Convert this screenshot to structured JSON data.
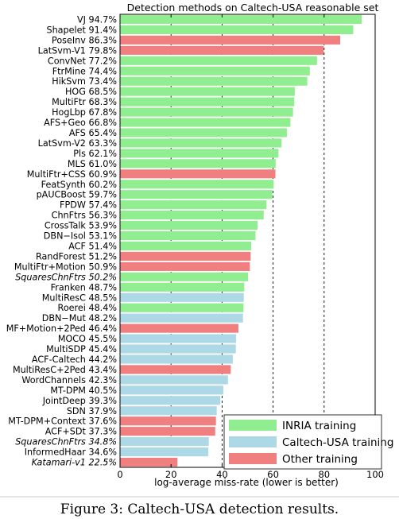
{
  "chart_data": {
    "type": "bar",
    "orientation": "horizontal",
    "title": "Detection methods on Caltech-USA reasonable set",
    "xlabel": "log-average miss-rate (lower is better)",
    "ylabel": "",
    "xlim": [
      0,
      100
    ],
    "xticks": [
      "0",
      "20",
      "40",
      "60",
      "80",
      "100"
    ],
    "grid": "vertical dashed at 20, 40, 60, 80",
    "legend_position": "bottom-right",
    "colors": {
      "inria": "#90ee90",
      "caltech": "#add8e6",
      "other": "#f08080"
    },
    "legend": [
      {
        "key": "inria",
        "label": "INRIA training"
      },
      {
        "key": "caltech",
        "label": "Caltech-USA training"
      },
      {
        "key": "other",
        "label": "Other training"
      }
    ],
    "bars": [
      {
        "label": "VJ 94.7%",
        "value": 94.7,
        "group": "inria",
        "italic": false
      },
      {
        "label": "Shapelet 91.4%",
        "value": 91.4,
        "group": "inria",
        "italic": false
      },
      {
        "label": "PoseInv 86.3%",
        "value": 86.3,
        "group": "other",
        "italic": false
      },
      {
        "label": "LatSvm-V1 79.8%",
        "value": 79.8,
        "group": "other",
        "italic": false
      },
      {
        "label": "ConvNet 77.2%",
        "value": 77.2,
        "group": "inria",
        "italic": false
      },
      {
        "label": "FtrMine 74.4%",
        "value": 74.4,
        "group": "inria",
        "italic": false
      },
      {
        "label": "HikSvm 73.4%",
        "value": 73.4,
        "group": "inria",
        "italic": false
      },
      {
        "label": "HOG 68.5%",
        "value": 68.5,
        "group": "inria",
        "italic": false
      },
      {
        "label": "MultiFtr 68.3%",
        "value": 68.3,
        "group": "inria",
        "italic": false
      },
      {
        "label": "HogLbp 67.8%",
        "value": 67.8,
        "group": "inria",
        "italic": false
      },
      {
        "label": "AFS+Geo 66.8%",
        "value": 66.8,
        "group": "inria",
        "italic": false
      },
      {
        "label": "AFS 65.4%",
        "value": 65.4,
        "group": "inria",
        "italic": false
      },
      {
        "label": "LatSvm-V2 63.3%",
        "value": 63.3,
        "group": "inria",
        "italic": false
      },
      {
        "label": "Pls 62.1%",
        "value": 62.1,
        "group": "inria",
        "italic": false
      },
      {
        "label": "MLS 61.0%",
        "value": 61.0,
        "group": "inria",
        "italic": false
      },
      {
        "label": "MultiFtr+CSS 60.9%",
        "value": 60.9,
        "group": "other",
        "italic": false
      },
      {
        "label": "FeatSynth 60.2%",
        "value": 60.2,
        "group": "inria",
        "italic": false
      },
      {
        "label": "pAUCBoost 59.7%",
        "value": 59.7,
        "group": "inria",
        "italic": false
      },
      {
        "label": "FPDW 57.4%",
        "value": 57.4,
        "group": "inria",
        "italic": false
      },
      {
        "label": "ChnFtrs 56.3%",
        "value": 56.3,
        "group": "inria",
        "italic": false
      },
      {
        "label": "CrossTalk 53.9%",
        "value": 53.9,
        "group": "inria",
        "italic": false
      },
      {
        "label": "DBN−Isol 53.1%",
        "value": 53.1,
        "group": "inria",
        "italic": false
      },
      {
        "label": "ACF 51.4%",
        "value": 51.4,
        "group": "inria",
        "italic": false
      },
      {
        "label": "RandForest 51.2%",
        "value": 51.2,
        "group": "other",
        "italic": false
      },
      {
        "label": "MultiFtr+Motion 50.9%",
        "value": 50.9,
        "group": "other",
        "italic": false
      },
      {
        "label": "SquaresChnFtrs 50.2%",
        "value": 50.2,
        "group": "inria",
        "italic": true
      },
      {
        "label": "Franken 48.7%",
        "value": 48.7,
        "group": "inria",
        "italic": false
      },
      {
        "label": "MultiResC 48.5%",
        "value": 48.5,
        "group": "caltech",
        "italic": false
      },
      {
        "label": "Roerei 48.4%",
        "value": 48.4,
        "group": "inria",
        "italic": false
      },
      {
        "label": "DBN−Mut 48.2%",
        "value": 48.2,
        "group": "caltech",
        "italic": false
      },
      {
        "label": "MF+Motion+2Ped 46.4%",
        "value": 46.4,
        "group": "other",
        "italic": false
      },
      {
        "label": "MOCO 45.5%",
        "value": 45.5,
        "group": "caltech",
        "italic": false
      },
      {
        "label": "MultiSDP 45.4%",
        "value": 45.4,
        "group": "caltech",
        "italic": false
      },
      {
        "label": "ACF-Caltech 44.2%",
        "value": 44.2,
        "group": "caltech",
        "italic": false
      },
      {
        "label": "MultiResC+2Ped 43.4%",
        "value": 43.4,
        "group": "other",
        "italic": false
      },
      {
        "label": "WordChannels 42.3%",
        "value": 42.3,
        "group": "caltech",
        "italic": false
      },
      {
        "label": "MT-DPM 40.5%",
        "value": 40.5,
        "group": "caltech",
        "italic": false
      },
      {
        "label": "JointDeep 39.3%",
        "value": 39.3,
        "group": "caltech",
        "italic": false
      },
      {
        "label": "SDN 37.9%",
        "value": 37.9,
        "group": "caltech",
        "italic": false
      },
      {
        "label": "MT-DPM+Context 37.6%",
        "value": 37.6,
        "group": "other",
        "italic": false
      },
      {
        "label": "ACF+SDt 37.3%",
        "value": 37.3,
        "group": "other",
        "italic": false
      },
      {
        "label": "SquaresChnFtrs 34.8%",
        "value": 34.8,
        "group": "caltech",
        "italic": true
      },
      {
        "label": "InformedHaar 34.6%",
        "value": 34.6,
        "group": "caltech",
        "italic": false
      },
      {
        "label": "Katamari-v1 22.5%",
        "value": 22.5,
        "group": "other",
        "italic": true
      }
    ]
  },
  "caption": "Figure 3: Caltech-USA detection results."
}
